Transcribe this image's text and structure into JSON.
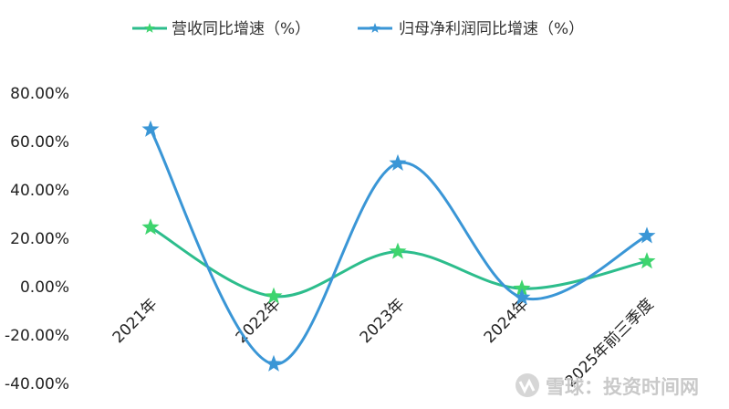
{
  "chart_data": {
    "type": "line",
    "categories": [
      "2021年",
      "2022年",
      "2023年",
      "2024年",
      "2025年前三季度"
    ],
    "series": [
      {
        "name": "营收同比增速（%）",
        "color": "#2dbd8c",
        "marker_color": "#3ed46e",
        "values": [
          24.5,
          -4.0,
          14.5,
          -0.8,
          10.5
        ]
      },
      {
        "name": "归母净利润同比增速（%）",
        "color": "#3a96d6",
        "marker_color": "#3a96d6",
        "values": [
          65.0,
          -32.0,
          51.0,
          -4.5,
          21.0
        ]
      }
    ],
    "ylim": [
      -40,
      80
    ],
    "yticks": [
      "80.00%",
      "60.00%",
      "40.00%",
      "20.00%",
      "0.00%",
      "-20.00%",
      "-40.00%"
    ],
    "ytick_values": [
      80,
      60,
      40,
      20,
      0,
      -20,
      -40
    ],
    "smooth": true,
    "marker": "star",
    "legend_position": "top"
  },
  "watermark": {
    "text": "雪球：投资时间网"
  }
}
